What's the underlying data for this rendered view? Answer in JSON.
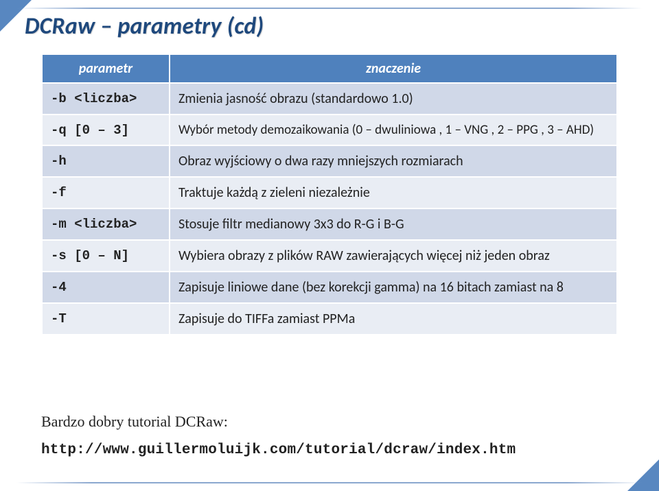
{
  "title": "DCRaw – parametry (cd)",
  "table": {
    "headers": [
      "parametr",
      "znaczenie"
    ],
    "rows": [
      {
        "param": "-b <liczba>",
        "desc": "Zmienia jasność obrazu (standardowo 1.0)"
      },
      {
        "param": "-q [0 – 3]",
        "desc": "Wybór metody demozaikowania (0 – dwuliniowa , 1 – VNG , 2 – PPG , 3 – AHD)"
      },
      {
        "param": "-h",
        "desc": "Obraz wyjściowy o dwa razy mniejszych rozmiarach"
      },
      {
        "param": "-f",
        "desc": "Traktuje każdą z zieleni niezależnie"
      },
      {
        "param": "-m <liczba>",
        "desc": "Stosuje filtr medianowy 3x3 do R-G i B-G"
      },
      {
        "param": "-s [0 – N]",
        "desc": "Wybiera obrazy z plików RAW zawierających więcej niż jeden obraz"
      },
      {
        "param": "-4",
        "desc": "Zapisuje liniowe dane (bez korekcji gamma) na 16 bitach zamiast na 8"
      },
      {
        "param": "-T",
        "desc": "Zapisuje do TIFFa zamiast PPMa"
      }
    ]
  },
  "footer": "Bardzo dobry tutorial DCRaw:",
  "link": "http://www.guillermoluijk.com/tutorial/dcraw/index.htm",
  "colors": {
    "accent": "#4f81bd",
    "title": "#1f497d",
    "rowA": "#d0d8e8",
    "rowB": "#e9edf4"
  }
}
